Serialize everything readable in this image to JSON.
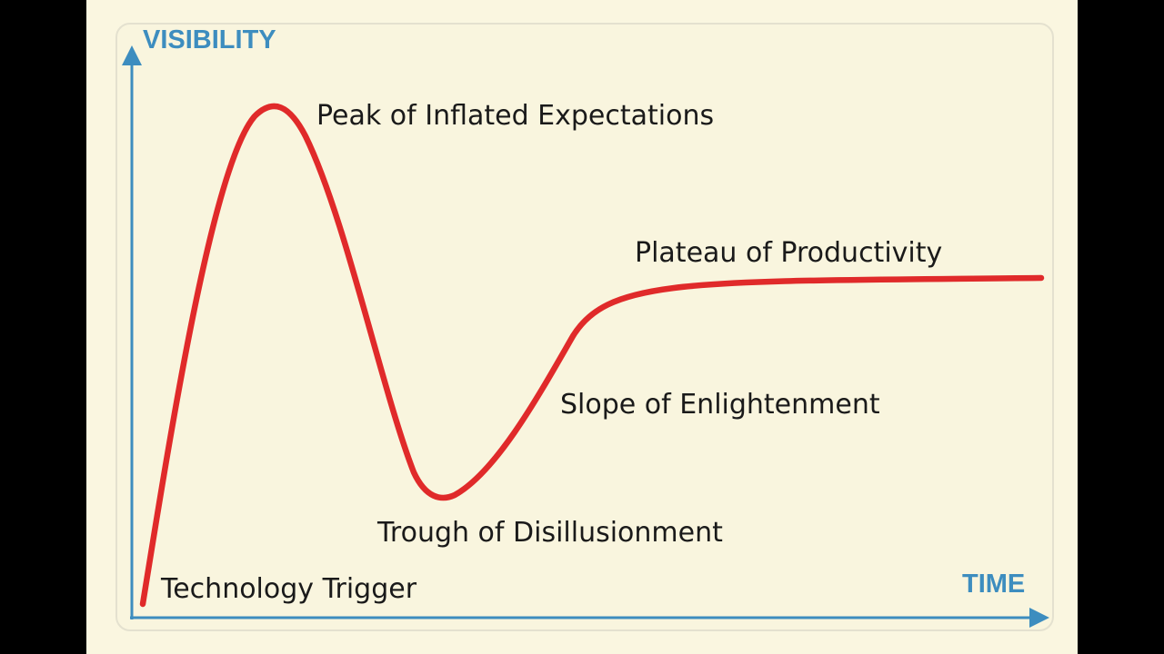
{
  "colors": {
    "background": "#faf6e0",
    "axis": "#3d8dbf",
    "curve": "#e02a2a",
    "text": "#1a1a1a"
  },
  "axes": {
    "y_label": "VISIBILITY",
    "x_label": "TIME"
  },
  "stages": [
    {
      "id": "trigger",
      "label": "Technology Trigger"
    },
    {
      "id": "peak",
      "label": "Peak of Inflated Expectations"
    },
    {
      "id": "trough",
      "label": "Trough of Disillusionment"
    },
    {
      "id": "slope",
      "label": "Slope of Enlightenment"
    },
    {
      "id": "plateau",
      "label": "Plateau of Productivity"
    }
  ]
}
